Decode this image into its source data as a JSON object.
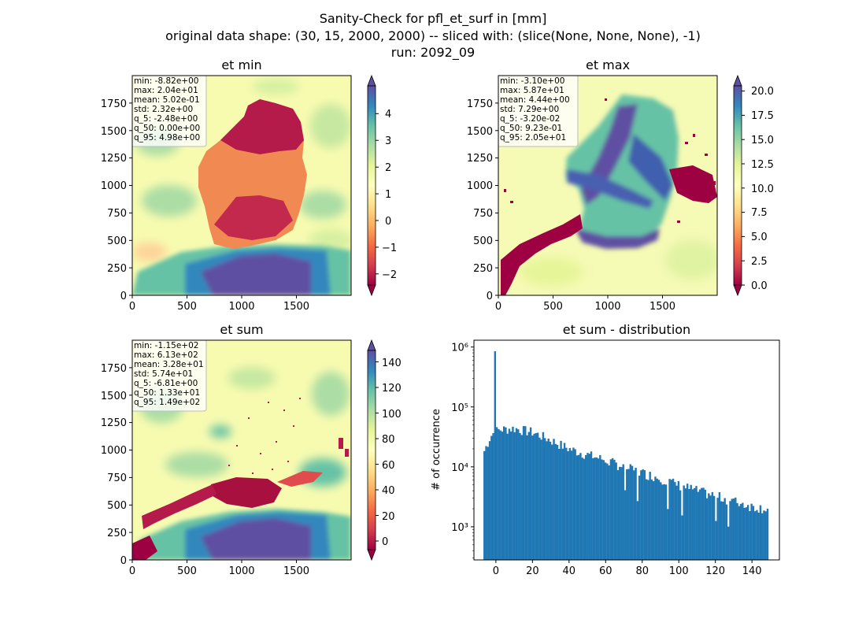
{
  "figure": {
    "suptitle_lines": [
      "Sanity-Check for pfl_et_surf in [mm]",
      "original data shape: (30, 15, 2000, 2000) -- sliced with: (slice(None, None, None), -1)",
      "run: 2092_09"
    ]
  },
  "chart_data": [
    {
      "type": "heatmap",
      "title": "et min",
      "colormap": "Spectral",
      "xlim": [
        0,
        2000
      ],
      "ylim": [
        0,
        2000
      ],
      "xticks": [
        "0",
        "500",
        "1000",
        "1500"
      ],
      "yticks": [
        "0",
        "250",
        "500",
        "750",
        "1000",
        "1250",
        "1500",
        "1750"
      ],
      "colorbar": {
        "range": [
          -2.48,
          4.98
        ],
        "ticks": [
          "−2",
          "−1",
          "0",
          "1",
          "2",
          "3",
          "4"
        ],
        "extend": "both"
      },
      "stats": [
        "min: -8.82e+00",
        "max: 2.04e+01",
        "mean: 5.02e-01",
        "std: 2.32e+00",
        "q_5: -2.48e+00",
        "q_50: 0.00e+00",
        "q_95: 4.98e+00"
      ]
    },
    {
      "type": "heatmap",
      "title": "et max",
      "colormap": "Spectral",
      "xlim": [
        0,
        2000
      ],
      "ylim": [
        0,
        2000
      ],
      "xticks": [
        "0",
        "500",
        "1000",
        "1500"
      ],
      "yticks": [
        "0",
        "250",
        "500",
        "750",
        "1000",
        "1250",
        "1500",
        "1750"
      ],
      "colorbar": {
        "range": [
          -0.032,
          20.5
        ],
        "ticks": [
          "0.0",
          "2.5",
          "5.0",
          "7.5",
          "10.0",
          "12.5",
          "15.0",
          "17.5",
          "20.0"
        ],
        "extend": "both"
      },
      "stats": [
        "min: -3.10e+00",
        "max: 5.87e+01",
        "mean: 4.44e+00",
        "std: 7.29e+00",
        "q_5: -3.20e-02",
        "q_50: 9.23e-01",
        "q_95: 2.05e+01"
      ]
    },
    {
      "type": "heatmap",
      "title": "et sum",
      "colormap": "Spectral",
      "xlim": [
        0,
        2000
      ],
      "ylim": [
        0,
        2000
      ],
      "xticks": [
        "0",
        "500",
        "1000",
        "1500"
      ],
      "yticks": [
        "0",
        "250",
        "500",
        "750",
        "1000",
        "1250",
        "1500",
        "1750"
      ],
      "colorbar": {
        "range": [
          -6.81,
          149
        ],
        "ticks": [
          "0",
          "20",
          "40",
          "60",
          "80",
          "100",
          "120",
          "140"
        ],
        "extend": "both"
      },
      "stats": [
        "min: -1.15e+02",
        "max: 6.13e+02",
        "mean: 3.28e+01",
        "std: 5.74e+01",
        "q_5: -6.81e+00",
        "q_50: 1.33e+01",
        "q_95: 1.49e+02"
      ]
    },
    {
      "type": "bar",
      "title": "et sum - distribution",
      "ylabel": "# of occurrence",
      "yscale": "log",
      "xlim": [
        -12,
        155
      ],
      "ylim": [
        280,
        1300000
      ],
      "xticks": [
        0,
        20,
        40,
        60,
        80,
        100,
        120,
        140
      ],
      "yticks": [
        {
          "value": 1000,
          "label": "10³"
        },
        {
          "value": 10000,
          "label": "10⁴"
        },
        {
          "value": 100000,
          "label": "10⁵"
        },
        {
          "value": 1000000,
          "label": "10⁶"
        }
      ],
      "color": "#1f77b4",
      "bin_range": [
        -6.81,
        149
      ],
      "bins": 160,
      "spike": {
        "x": 0,
        "count": 850000
      },
      "profile_points": [
        [
          -6.8,
          17000
        ],
        [
          -5,
          23000
        ],
        [
          -3,
          32000
        ],
        [
          -1,
          38000
        ],
        [
          2,
          42000
        ],
        [
          10,
          44000
        ],
        [
          20,
          38000
        ],
        [
          30,
          28000
        ],
        [
          40,
          20000
        ],
        [
          50,
          16000
        ],
        [
          60,
          13000
        ],
        [
          70,
          10000
        ],
        [
          80,
          8000
        ],
        [
          90,
          6500
        ],
        [
          100,
          5000
        ],
        [
          110,
          4000
        ],
        [
          120,
          3300
        ],
        [
          130,
          2700
        ],
        [
          140,
          2200
        ],
        [
          149,
          2000
        ]
      ]
    }
  ]
}
